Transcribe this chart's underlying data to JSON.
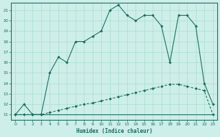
{
  "bg_color": "#cdeee9",
  "grid_color": "#aaddcc",
  "line_color": "#1a6b60",
  "xlabel": "Humidex (Indice chaleur)",
  "xlim": [
    -0.5,
    23.5
  ],
  "ylim": [
    10.5,
    21.7
  ],
  "xticks": [
    0,
    1,
    2,
    3,
    4,
    5,
    6,
    7,
    8,
    9,
    10,
    11,
    12,
    13,
    14,
    15,
    16,
    17,
    18,
    19,
    20,
    21,
    22,
    23
  ],
  "yticks": [
    11,
    12,
    13,
    14,
    15,
    16,
    17,
    18,
    19,
    20,
    21
  ],
  "line_flat_x": [
    0,
    1,
    2,
    3,
    4,
    5,
    6,
    7,
    8,
    9,
    10,
    11,
    12,
    13,
    14,
    15,
    16,
    17,
    18,
    19,
    20,
    21,
    22,
    23
  ],
  "line_flat_y": [
    11,
    11,
    11,
    11,
    11,
    11,
    11,
    11,
    11,
    11,
    11,
    11,
    11,
    11,
    11,
    11,
    11,
    11,
    11,
    11,
    11,
    11,
    11,
    11
  ],
  "line_diag_x": [
    0,
    1,
    2,
    3,
    4,
    5,
    6,
    7,
    8,
    9,
    10,
    11,
    12,
    13,
    14,
    15,
    16,
    17,
    18,
    19,
    20,
    21,
    22,
    23
  ],
  "line_diag_y": [
    11,
    11,
    11,
    11,
    11.2,
    11.4,
    11.6,
    11.8,
    12,
    12.1,
    12.3,
    12.5,
    12.7,
    12.9,
    13.1,
    13.3,
    13.5,
    13.7,
    13.9,
    13.9,
    13.7,
    13.5,
    13.3,
    11
  ],
  "line_main_x": [
    0,
    1,
    2,
    3,
    4,
    5,
    6,
    7,
    8,
    9,
    10,
    11,
    12,
    13,
    14,
    15,
    16,
    17,
    18,
    19,
    20,
    21,
    22,
    23
  ],
  "line_main_y": [
    11,
    12,
    11,
    11,
    15,
    16.5,
    16,
    18,
    18,
    18.5,
    19,
    21,
    21.5,
    20.5,
    20,
    20.5,
    20.5,
    19.5,
    16,
    20.5,
    20.5,
    19.5,
    14,
    12
  ]
}
